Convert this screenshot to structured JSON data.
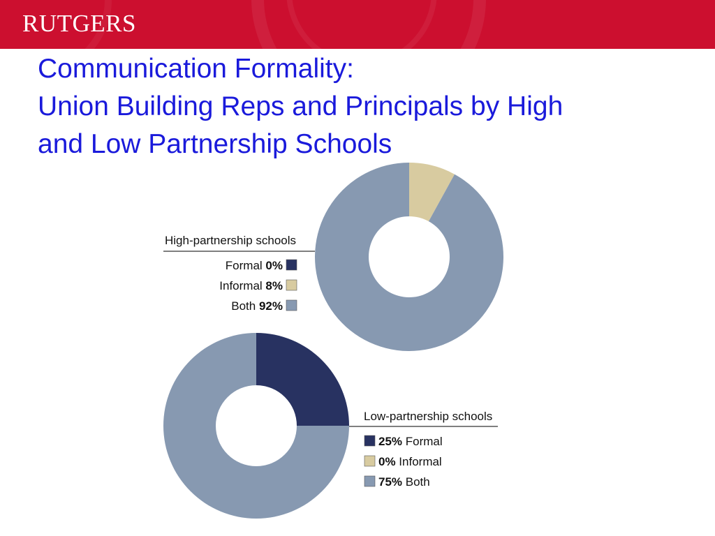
{
  "header": {
    "logo_text": "RUTGERS"
  },
  "slide": {
    "title_lines": [
      "Communication Formality:",
      "Union Building Reps and Principals by High",
      "and Low Partnership Schools"
    ]
  },
  "colors": {
    "banner": "#cc0f2f",
    "title": "#1a1adb",
    "Formal": "#283261",
    "Informal": "#d8cba0",
    "Both": "#8799b1"
  },
  "chart_data": [
    {
      "type": "pie",
      "title": "High-partnership schools",
      "categories": [
        "Formal",
        "Informal",
        "Both"
      ],
      "values": [
        0,
        8,
        92
      ],
      "value_labels": [
        "0%",
        "8%",
        "92%"
      ],
      "legend_position": "left"
    },
    {
      "type": "pie",
      "title": "Low-partnership schools",
      "categories": [
        "Formal",
        "Informal",
        "Both"
      ],
      "values": [
        25,
        0,
        75
      ],
      "value_labels": [
        "25%",
        "0%",
        "75%"
      ],
      "legend_position": "right"
    }
  ]
}
